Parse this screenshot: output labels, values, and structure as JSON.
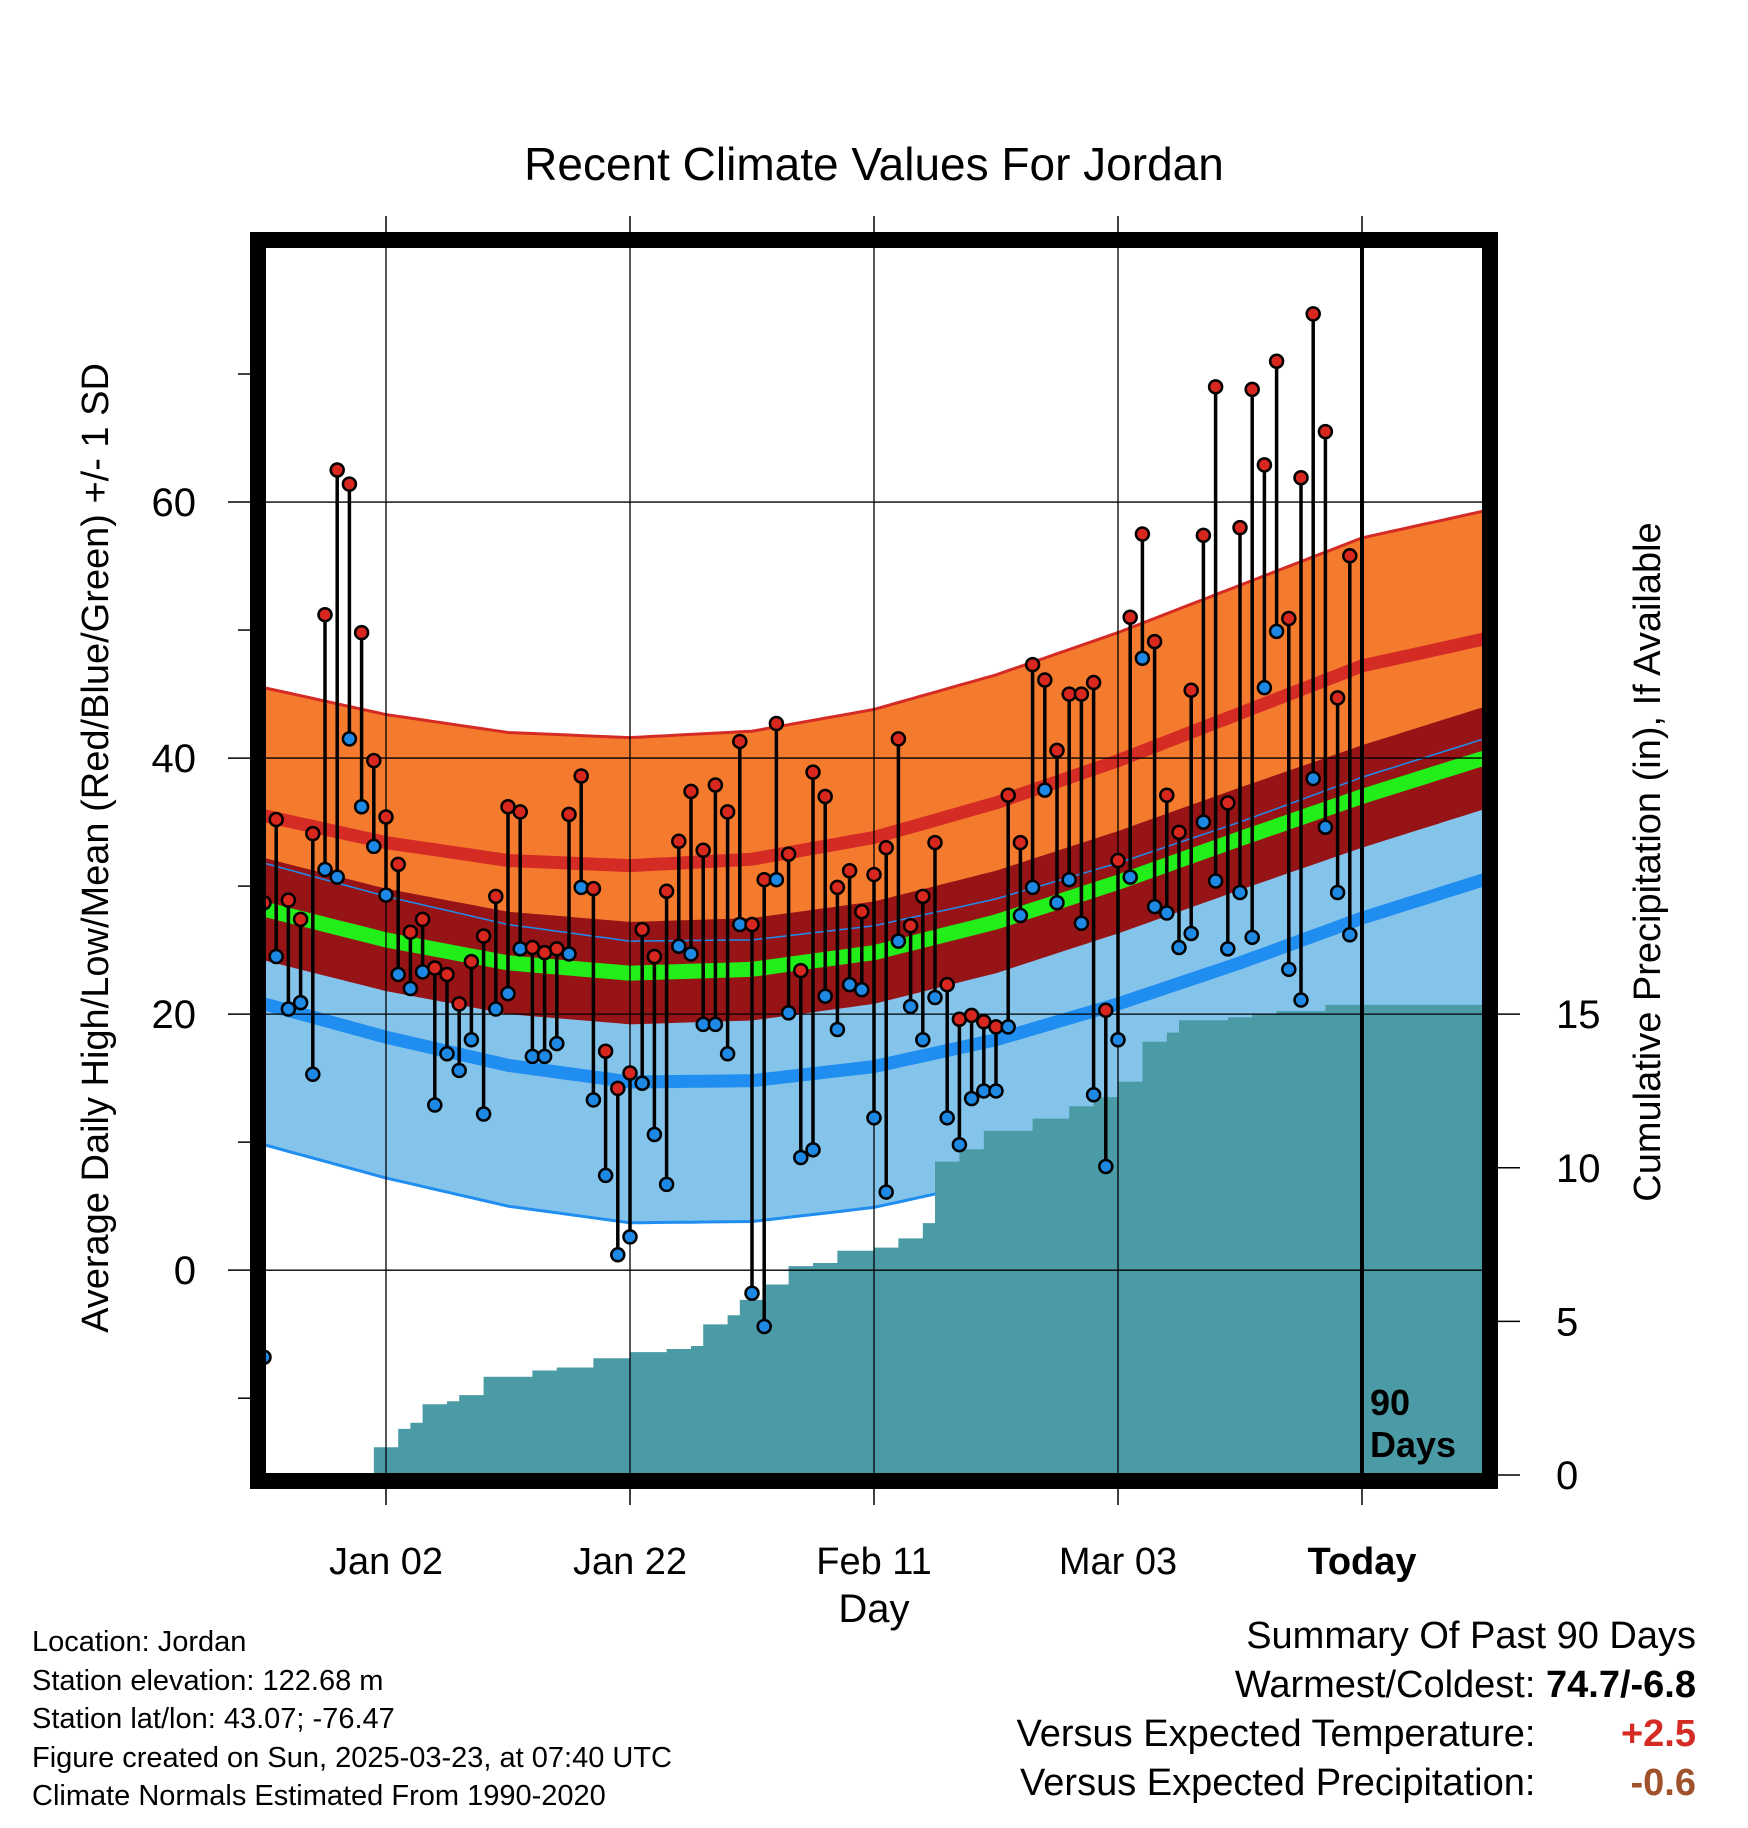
{
  "colors": {
    "high_band": "#f47b2e",
    "high_line": "#d52b25",
    "low_band": "#85c4ea",
    "low_line": "#1f8ef0",
    "mean_band": "#961416",
    "mean_line": "#22ee1a",
    "precip": "#4a9ba6",
    "high_dot": "#d7271f",
    "low_dot": "#1e88e5",
    "warmer": "#d52b25",
    "drier": "#a0522d"
  },
  "chart_data": {
    "type": "line",
    "title": "Recent Climate Values For Jordan",
    "xlabel": "Day",
    "ylabel_left": "Average Daily High/Low/Mean (Red/Blue/Green) +/- 1 SD",
    "ylabel_right": "Cumulative Precipitation (in), If Available",
    "x_ticks": [
      "Jan 02",
      "Jan 22",
      "Feb 11",
      "Mar 03",
      "Today"
    ],
    "x_tick_days": [
      10,
      30,
      50,
      70,
      90
    ],
    "x_range_days": [
      0,
      100
    ],
    "y_left_range": [
      -16,
      80
    ],
    "y_left_ticks": [
      0,
      20,
      40,
      60
    ],
    "y_right_range": [
      0,
      40
    ],
    "y_right_ticks": [
      0,
      5,
      10,
      15
    ],
    "today_label": "90 Days",
    "normals": {
      "high_mean": [
        {
          "day": 0,
          "value": 35.5
        },
        {
          "day": 10,
          "value": 33.4
        },
        {
          "day": 20,
          "value": 32.0
        },
        {
          "day": 30,
          "value": 31.6
        },
        {
          "day": 40,
          "value": 32.1
        },
        {
          "day": 50,
          "value": 33.8
        },
        {
          "day": 60,
          "value": 36.5
        },
        {
          "day": 70,
          "value": 39.8
        },
        {
          "day": 80,
          "value": 43.5
        },
        {
          "day": 90,
          "value": 47.2
        },
        {
          "day": 100,
          "value": 49.3
        }
      ],
      "high_sd": 10.0,
      "low_mean": [
        {
          "day": 0,
          "value": 20.8
        },
        {
          "day": 10,
          "value": 18.2
        },
        {
          "day": 20,
          "value": 16.0
        },
        {
          "day": 30,
          "value": 14.7
        },
        {
          "day": 40,
          "value": 14.8
        },
        {
          "day": 50,
          "value": 15.9
        },
        {
          "day": 60,
          "value": 18.0
        },
        {
          "day": 70,
          "value": 20.8
        },
        {
          "day": 80,
          "value": 24.0
        },
        {
          "day": 90,
          "value": 27.5
        },
        {
          "day": 100,
          "value": 30.5
        }
      ],
      "low_sd": 11.0,
      "avg_mean": [
        {
          "day": 0,
          "value": 28.2
        },
        {
          "day": 10,
          "value": 25.8
        },
        {
          "day": 20,
          "value": 24.0
        },
        {
          "day": 30,
          "value": 23.2
        },
        {
          "day": 40,
          "value": 23.5
        },
        {
          "day": 50,
          "value": 24.8
        },
        {
          "day": 60,
          "value": 27.2
        },
        {
          "day": 70,
          "value": 30.3
        },
        {
          "day": 80,
          "value": 33.7
        },
        {
          "day": 90,
          "value": 37.0
        },
        {
          "day": 100,
          "value": 40.0
        }
      ],
      "avg_sd": 4.0
    },
    "daily": [
      {
        "day": 0,
        "high": 28.7,
        "low": -6.8
      },
      {
        "day": 1,
        "high": 35.2,
        "low": 24.5
      },
      {
        "day": 2,
        "high": 28.9,
        "low": 20.4
      },
      {
        "day": 3,
        "high": 27.4,
        "low": 20.9
      },
      {
        "day": 4,
        "high": 34.1,
        "low": 15.3
      },
      {
        "day": 5,
        "high": 51.2,
        "low": 31.3
      },
      {
        "day": 6,
        "high": 62.5,
        "low": 30.7
      },
      {
        "day": 7,
        "high": 61.4,
        "low": 41.5
      },
      {
        "day": 8,
        "high": 49.8,
        "low": 36.2
      },
      {
        "day": 9,
        "high": 39.8,
        "low": 33.1
      },
      {
        "day": 10,
        "high": 35.4,
        "low": 29.3
      },
      {
        "day": 11,
        "high": 31.7,
        "low": 23.1
      },
      {
        "day": 12,
        "high": 26.4,
        "low": 22.0
      },
      {
        "day": 13,
        "high": 27.4,
        "low": 23.3
      },
      {
        "day": 14,
        "high": 23.6,
        "low": 12.9
      },
      {
        "day": 15,
        "high": 23.1,
        "low": 16.9
      },
      {
        "day": 16,
        "high": 20.8,
        "low": 15.6
      },
      {
        "day": 17,
        "high": 24.1,
        "low": 18.0
      },
      {
        "day": 18,
        "high": 26.1,
        "low": 12.2
      },
      {
        "day": 19,
        "high": 29.2,
        "low": 20.4
      },
      {
        "day": 20,
        "high": 36.2,
        "low": 21.6
      },
      {
        "day": 21,
        "high": 35.8,
        "low": 25.1
      },
      {
        "day": 22,
        "high": 25.2,
        "low": 16.7
      },
      {
        "day": 23,
        "high": 24.8,
        "low": 16.7
      },
      {
        "day": 24,
        "high": 25.1,
        "low": 17.7
      },
      {
        "day": 25,
        "high": 35.6,
        "low": 24.7
      },
      {
        "day": 26,
        "high": 38.6,
        "low": 29.9
      },
      {
        "day": 27,
        "high": 29.8,
        "low": 13.3
      },
      {
        "day": 28,
        "high": 17.1,
        "low": 7.4
      },
      {
        "day": 29,
        "high": 14.2,
        "low": 1.2
      },
      {
        "day": 30,
        "high": 15.4,
        "low": 2.6
      },
      {
        "day": 31,
        "high": 26.6,
        "low": 14.6
      },
      {
        "day": 32,
        "high": 24.5,
        "low": 10.6
      },
      {
        "day": 33,
        "high": 29.6,
        "low": 6.7
      },
      {
        "day": 34,
        "high": 33.5,
        "low": 25.3
      },
      {
        "day": 35,
        "high": 37.4,
        "low": 24.7
      },
      {
        "day": 36,
        "high": 32.8,
        "low": 19.2
      },
      {
        "day": 37,
        "high": 37.9,
        "low": 19.2
      },
      {
        "day": 38,
        "high": 35.8,
        "low": 16.9
      },
      {
        "day": 39,
        "high": 41.3,
        "low": 27.0
      },
      {
        "day": 40,
        "high": 27.0,
        "low": -1.8
      },
      {
        "day": 41,
        "high": 30.5,
        "low": -4.4
      },
      {
        "day": 42,
        "high": 42.7,
        "low": 30.5
      },
      {
        "day": 43,
        "high": 32.5,
        "low": 20.1
      },
      {
        "day": 44,
        "high": 23.4,
        "low": 8.8
      },
      {
        "day": 45,
        "high": 38.9,
        "low": 9.4
      },
      {
        "day": 46,
        "high": 37.0,
        "low": 21.4
      },
      {
        "day": 47,
        "high": 29.9,
        "low": 18.8
      },
      {
        "day": 48,
        "high": 31.2,
        "low": 22.3
      },
      {
        "day": 49,
        "high": 28.0,
        "low": 21.9
      },
      {
        "day": 50,
        "high": 30.9,
        "low": 11.9
      },
      {
        "day": 51,
        "high": 33.0,
        "low": 6.1
      },
      {
        "day": 52,
        "high": 41.5,
        "low": 25.7
      },
      {
        "day": 53,
        "high": 26.9,
        "low": 20.6
      },
      {
        "day": 54,
        "high": 29.2,
        "low": 18.0
      },
      {
        "day": 55,
        "high": 33.4,
        "low": 21.3
      },
      {
        "day": 56,
        "high": 22.3,
        "low": 11.9
      },
      {
        "day": 57,
        "high": 19.6,
        "low": 9.8
      },
      {
        "day": 58,
        "high": 19.9,
        "low": 13.4
      },
      {
        "day": 59,
        "high": 19.4,
        "low": 14.0
      },
      {
        "day": 60,
        "high": 19.0,
        "low": 14.0
      },
      {
        "day": 61,
        "high": 37.1,
        "low": 19.0
      },
      {
        "day": 62,
        "high": 33.4,
        "low": 27.7
      },
      {
        "day": 63,
        "high": 47.3,
        "low": 29.9
      },
      {
        "day": 64,
        "high": 46.1,
        "low": 37.5
      },
      {
        "day": 65,
        "high": 40.6,
        "low": 28.7
      },
      {
        "day": 66,
        "high": 45.0,
        "low": 30.5
      },
      {
        "day": 67,
        "high": 45.0,
        "low": 27.1
      },
      {
        "day": 68,
        "high": 45.9,
        "low": 13.7
      },
      {
        "day": 69,
        "high": 20.3,
        "low": 8.1
      },
      {
        "day": 70,
        "high": 32.0,
        "low": 18.0
      },
      {
        "day": 71,
        "high": 51.0,
        "low": 30.7
      },
      {
        "day": 72,
        "high": 57.5,
        "low": 47.8
      },
      {
        "day": 73,
        "high": 49.1,
        "low": 28.4
      },
      {
        "day": 74,
        "high": 37.1,
        "low": 27.9
      },
      {
        "day": 75,
        "high": 34.2,
        "low": 25.2
      },
      {
        "day": 76,
        "high": 45.3,
        "low": 26.3
      },
      {
        "day": 77,
        "high": 57.4,
        "low": 35.0
      },
      {
        "day": 78,
        "high": 69.0,
        "low": 30.4
      },
      {
        "day": 79,
        "high": 36.5,
        "low": 25.1
      },
      {
        "day": 80,
        "high": 58.0,
        "low": 29.5
      },
      {
        "day": 81,
        "high": 68.8,
        "low": 26.0
      },
      {
        "day": 82,
        "high": 62.9,
        "low": 45.5
      },
      {
        "day": 83,
        "high": 71.0,
        "low": 49.9
      },
      {
        "day": 84,
        "high": 50.9,
        "low": 23.5
      },
      {
        "day": 85,
        "high": 61.9,
        "low": 21.1
      },
      {
        "day": 86,
        "high": 74.7,
        "low": 38.4
      },
      {
        "day": 87,
        "high": 65.5,
        "low": 34.6
      },
      {
        "day": 88,
        "high": 44.7,
        "low": 29.5
      },
      {
        "day": 89,
        "high": 55.8,
        "low": 26.2
      }
    ],
    "cumulative_precip": [
      {
        "day": 0,
        "value": 0.0
      },
      {
        "day": 8,
        "value": 0.0
      },
      {
        "day": 9,
        "value": 0.9
      },
      {
        "day": 11,
        "value": 1.5
      },
      {
        "day": 12,
        "value": 1.7
      },
      {
        "day": 13,
        "value": 2.3
      },
      {
        "day": 15,
        "value": 2.4
      },
      {
        "day": 16,
        "value": 2.6
      },
      {
        "day": 18,
        "value": 3.2
      },
      {
        "day": 22,
        "value": 3.4
      },
      {
        "day": 24,
        "value": 3.5
      },
      {
        "day": 27,
        "value": 3.8
      },
      {
        "day": 30,
        "value": 4.0
      },
      {
        "day": 33,
        "value": 4.1
      },
      {
        "day": 35,
        "value": 4.2
      },
      {
        "day": 36,
        "value": 4.9
      },
      {
        "day": 38,
        "value": 5.2
      },
      {
        "day": 39,
        "value": 5.7
      },
      {
        "day": 41,
        "value": 6.2
      },
      {
        "day": 43,
        "value": 6.8
      },
      {
        "day": 45,
        "value": 6.9
      },
      {
        "day": 47,
        "value": 7.3
      },
      {
        "day": 50,
        "value": 7.4
      },
      {
        "day": 52,
        "value": 7.7
      },
      {
        "day": 54,
        "value": 8.2
      },
      {
        "day": 55,
        "value": 10.2
      },
      {
        "day": 57,
        "value": 10.6
      },
      {
        "day": 59,
        "value": 11.2
      },
      {
        "day": 63,
        "value": 11.6
      },
      {
        "day": 66,
        "value": 12.0
      },
      {
        "day": 68,
        "value": 12.3
      },
      {
        "day": 70,
        "value": 12.8
      },
      {
        "day": 72,
        "value": 14.1
      },
      {
        "day": 74,
        "value": 14.4
      },
      {
        "day": 75,
        "value": 14.8
      },
      {
        "day": 79,
        "value": 14.9
      },
      {
        "day": 81,
        "value": 15.0
      },
      {
        "day": 83,
        "value": 15.1
      },
      {
        "day": 87,
        "value": 15.3
      },
      {
        "day": 100,
        "value": 15.3
      }
    ]
  },
  "info": {
    "location": "Location: Jordan",
    "elevation": "Station elevation: 122.68 m",
    "latlon": "Station lat/lon: 43.07; -76.47",
    "created": "Figure created on Sun, 2025-03-23, at 07:40 UTC",
    "normals": "Climate Normals Estimated From 1990-2020"
  },
  "summary": {
    "title": "Summary Of Past 90 Days",
    "warmest_label": "Warmest/Coldest:",
    "warmest_value": "74.7/-6.8",
    "temp_label": "Versus Expected Temperature:",
    "temp_value": "+2.5",
    "precip_label": "Versus Expected Precipitation:",
    "precip_value": "-0.6"
  }
}
